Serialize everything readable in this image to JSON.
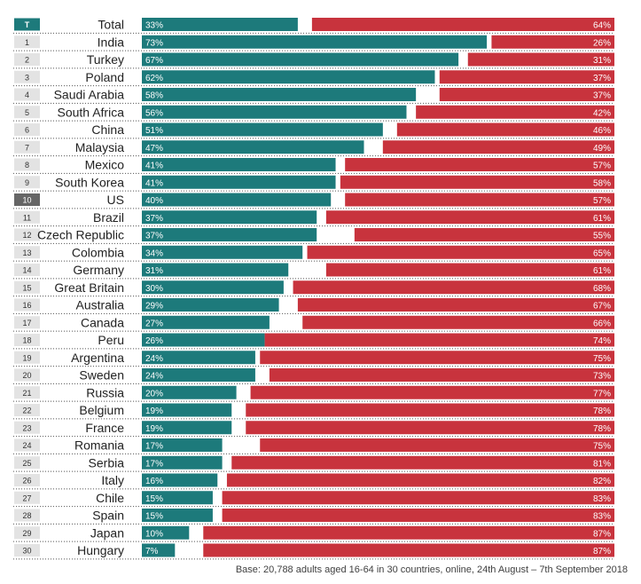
{
  "chart_data": {
    "type": "bar",
    "stacked": true,
    "orientation": "horizontal",
    "rank_labels": [
      "T",
      "1",
      "2",
      "3",
      "4",
      "5",
      "6",
      "7",
      "8",
      "9",
      "10",
      "11",
      "12",
      "13",
      "14",
      "15",
      "16",
      "17",
      "18",
      "19",
      "20",
      "21",
      "22",
      "23",
      "24",
      "25",
      "26",
      "27",
      "28",
      "29",
      "30"
    ],
    "categories": [
      "Total",
      "India",
      "Turkey",
      "Poland",
      "Saudi Arabia",
      "South Africa",
      "China",
      "Malaysia",
      "Mexico",
      "South Korea",
      "US",
      "Brazil",
      "Czech Republic",
      "Colombia",
      "Germany",
      "Great Britain",
      "Australia",
      "Canada",
      "Peru",
      "Argentina",
      "Sweden",
      "Russia",
      "Belgium",
      "France",
      "Romania",
      "Serbia",
      "Italy",
      "Chile",
      "Spain",
      "Japan",
      "Hungary"
    ],
    "series": [
      {
        "name": "left",
        "color": "#1d7a7b",
        "values": [
          33,
          73,
          67,
          62,
          58,
          56,
          51,
          47,
          41,
          41,
          40,
          37,
          37,
          34,
          31,
          30,
          29,
          27,
          26,
          24,
          24,
          20,
          19,
          19,
          17,
          17,
          16,
          15,
          15,
          10,
          7
        ],
        "labels": [
          "33%",
          "73%",
          "67%",
          "62%",
          "58%",
          "56%",
          "51%",
          "47%",
          "41%",
          "41%",
          "40%",
          "37%",
          "37%",
          "34%",
          "31%",
          "30%",
          "29%",
          "27%",
          "26%",
          "24%",
          "24%",
          "20%",
          "19%",
          "19%",
          "17%",
          "17%",
          "16%",
          "15%",
          "15%",
          "10%",
          "7%"
        ]
      },
      {
        "name": "right",
        "color": "#c8333d",
        "values": [
          64,
          26,
          31,
          37,
          37,
          42,
          46,
          49,
          57,
          58,
          57,
          61,
          55,
          65,
          61,
          68,
          67,
          66,
          74,
          75,
          73,
          77,
          78,
          78,
          75,
          81,
          82,
          83,
          83,
          87,
          87
        ],
        "labels": [
          "64%",
          "26%",
          "31%",
          "37%",
          "37%",
          "42%",
          "46%",
          "49%",
          "57%",
          "58%",
          "57%",
          "61%",
          "55%",
          "65%",
          "61%",
          "68%",
          "67%",
          "66%",
          "74%",
          "75%",
          "73%",
          "77%",
          "78%",
          "78%",
          "75%",
          "81%",
          "82%",
          "83%",
          "83%",
          "87%",
          "87%"
        ]
      }
    ],
    "xlim": [
      0,
      100
    ],
    "title": "",
    "xlabel": "",
    "ylabel": "",
    "highlight_rank_color": "#1d7a7b",
    "highlight_us_color": "#666666",
    "footnote": "Base: 20,788 adults aged 16-64 in 30 countries, online, 24th August – 7th September 2018"
  }
}
